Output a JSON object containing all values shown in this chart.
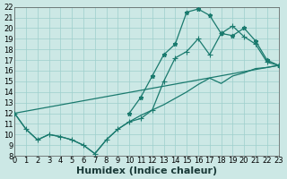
{
  "bg_color": "#cce8e5",
  "grid_color": "#9ecfcc",
  "line_color": "#1a7a6e",
  "xlabel": "Humidex (Indice chaleur)",
  "xlim": [
    0,
    23
  ],
  "ylim": [
    8,
    22
  ],
  "xticks": [
    0,
    1,
    2,
    3,
    4,
    5,
    6,
    7,
    8,
    9,
    10,
    11,
    12,
    13,
    14,
    15,
    16,
    17,
    18,
    19,
    20,
    21,
    22,
    23
  ],
  "yticks": [
    8,
    9,
    10,
    11,
    12,
    13,
    14,
    15,
    16,
    17,
    18,
    19,
    20,
    21,
    22
  ],
  "tick_fontsize": 6,
  "xlabel_fontsize": 8,
  "line_straight": {
    "x": [
      0,
      1,
      2,
      3,
      4,
      5,
      6,
      7,
      8,
      9,
      10,
      11,
      12,
      13,
      14,
      15,
      16,
      17,
      18,
      19,
      20,
      21,
      22,
      23
    ],
    "y": [
      12.0,
      10.5,
      9.5,
      10.0,
      9.8,
      9.5,
      9.0,
      8.2,
      9.5,
      10.5,
      11.2,
      11.8,
      12.3,
      12.8,
      13.4,
      14.0,
      14.7,
      15.3,
      14.8,
      15.5,
      15.8,
      16.2,
      16.3,
      16.5
    ]
  },
  "line_upper_straight": {
    "x": [
      0,
      23
    ],
    "y": [
      12.0,
      16.5
    ]
  },
  "line_wavy_markers": {
    "x": [
      10,
      11,
      12,
      13,
      14,
      15,
      16,
      17,
      18,
      19,
      20,
      21,
      22,
      23
    ],
    "y": [
      12.0,
      13.5,
      15.5,
      17.5,
      18.5,
      21.5,
      21.8,
      21.2,
      19.5,
      19.3,
      20.0,
      18.8,
      17.0,
      16.5
    ]
  },
  "line_cross_markers": {
    "x": [
      0,
      1,
      2,
      3,
      4,
      5,
      6,
      7,
      8,
      9,
      10,
      11,
      12,
      13,
      14,
      15,
      16,
      17,
      18,
      19,
      20,
      21,
      22,
      23
    ],
    "y": [
      12.0,
      10.5,
      9.5,
      10.0,
      9.8,
      9.5,
      9.0,
      8.2,
      9.5,
      10.5,
      11.2,
      11.5,
      12.3,
      15.0,
      17.2,
      17.8,
      19.0,
      17.5,
      19.5,
      20.2,
      19.2,
      18.5,
      16.8,
      16.5
    ]
  }
}
